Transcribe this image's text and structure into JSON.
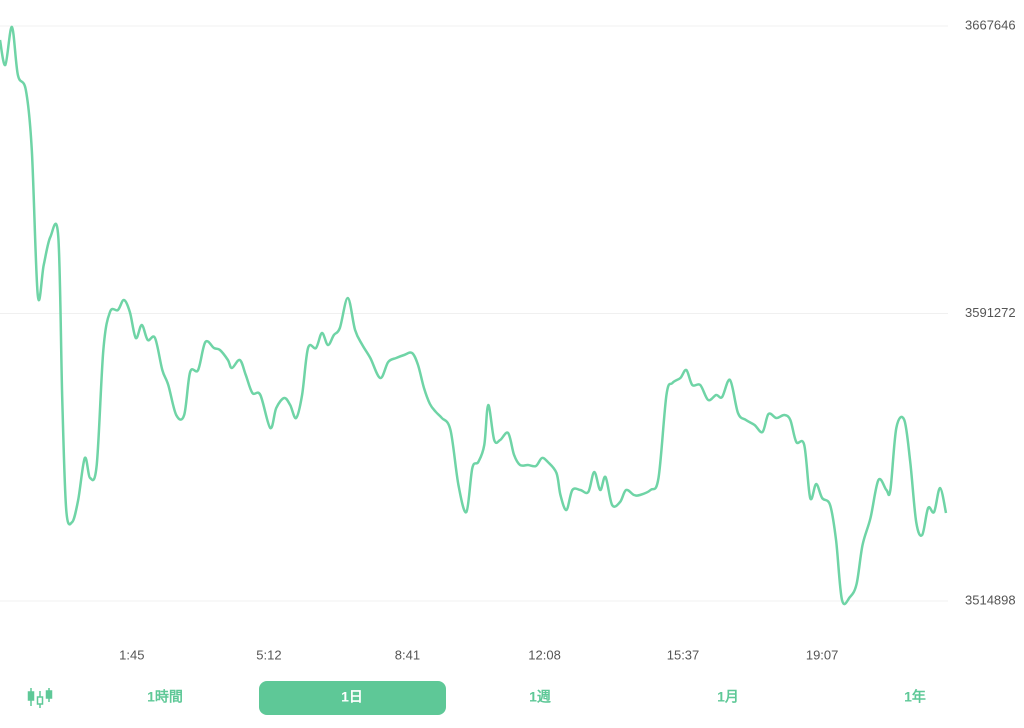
{
  "chart_data": {
    "type": "line",
    "color": "#6fd4a6",
    "grid": true,
    "ylim": [
      3514898,
      3667646
    ],
    "yticks": [
      3514898,
      3591272,
      3667646
    ],
    "xlim": [
      1346,
      2777
    ],
    "xticks": [
      {
        "value": 1545,
        "label": "1:45"
      },
      {
        "value": 1752,
        "label": "5:12"
      },
      {
        "value": 1961,
        "label": "8:41"
      },
      {
        "value": 2168,
        "label": "12:08"
      },
      {
        "value": 2377,
        "label": "15:37"
      },
      {
        "value": 2587,
        "label": "19:07"
      }
    ],
    "x": [
      1346,
      1354,
      1364,
      1373,
      1385,
      1394,
      1403,
      1412,
      1422,
      1434,
      1440,
      1446,
      1455,
      1464,
      1474,
      1482,
      1492,
      1502,
      1512,
      1524,
      1533,
      1542,
      1551,
      1560,
      1569,
      1580,
      1591,
      1600,
      1612,
      1624,
      1633,
      1645,
      1656,
      1669,
      1678,
      1690,
      1696,
      1708,
      1717,
      1727,
      1739,
      1754,
      1763,
      1775,
      1784,
      1793,
      1802,
      1811,
      1823,
      1832,
      1841,
      1850,
      1859,
      1871,
      1882,
      1893,
      1905,
      1920,
      1932,
      1944,
      1956,
      1968,
      1977,
      1986,
      1995,
      2004,
      2013,
      2026,
      2038,
      2050,
      2059,
      2068,
      2077,
      2083,
      2092,
      2101,
      2113,
      2122,
      2131,
      2143,
      2155,
      2164,
      2173,
      2186,
      2192,
      2201,
      2210,
      2222,
      2234,
      2243,
      2252,
      2260,
      2270,
      2282,
      2291,
      2303,
      2312,
      2328,
      2340,
      2352,
      2361,
      2373,
      2382,
      2391,
      2403,
      2415,
      2427,
      2436,
      2448,
      2460,
      2472,
      2485,
      2497,
      2506,
      2518,
      2530,
      2539,
      2548,
      2560,
      2569,
      2578,
      2587,
      2599,
      2608,
      2617,
      2629,
      2639,
      2648,
      2660,
      2672,
      2684,
      2690,
      2699,
      2711,
      2720,
      2729,
      2738,
      2747,
      2756,
      2765,
      2774
    ],
    "values": [
      3663928,
      3657286,
      3667381,
      3654630,
      3650645,
      3634706,
      3596187,
      3604156,
      3611595,
      3611595,
      3568294,
      3539072,
      3535884,
      3541729,
      3552886,
      3547573,
      3551026,
      3581576,
      3591671,
      3592202,
      3594859,
      3591671,
      3584764,
      3588217,
      3584233,
      3584764,
      3576263,
      3572278,
      3564309,
      3564309,
      3575732,
      3576263,
      3583701,
      3582107,
      3581576,
      3578920,
      3576794,
      3578920,
      3574935,
      3570153,
      3569622,
      3560855,
      3566168,
      3568825,
      3566965,
      3563512,
      3569622,
      3582107,
      3582107,
      3586092,
      3582904,
      3585561,
      3587420,
      3595390,
      3586889,
      3582904,
      3579451,
      3574138,
      3578388,
      3579451,
      3580248,
      3580779,
      3577591,
      3571481,
      3567231,
      3565106,
      3563512,
      3560324,
      3545713,
      3538541,
      3550229,
      3551823,
      3556339,
      3566965,
      3557668,
      3557668,
      3559527,
      3553683,
      3551026,
      3551026,
      3550761,
      3552886,
      3551823,
      3548901,
      3543057,
      3539072,
      3544385,
      3544385,
      3543854,
      3549167,
      3544385,
      3547839,
      3540400,
      3541197,
      3544385,
      3543057,
      3543057,
      3544385,
      3547573,
      3569622,
      3572810,
      3574138,
      3576263,
      3572278,
      3572278,
      3568294,
      3569622,
      3569091,
      3573607,
      3564840,
      3562981,
      3561652,
      3559793,
      3564575,
      3563512,
      3564309,
      3562981,
      3557136,
      3556339,
      3542260,
      3545979,
      3542260,
      3540400,
      3531103,
      3515164,
      3515961,
      3519414,
      3529774,
      3536947,
      3547042,
      3544385,
      3544385,
      3560855,
      3562981,
      3551823,
      3535884,
      3532431,
      3539603,
      3538541,
      3544916,
      3538275
    ]
  },
  "tabs": {
    "items": [
      "1時間",
      "1日",
      "1週",
      "1月",
      "1年"
    ],
    "active": 1
  }
}
